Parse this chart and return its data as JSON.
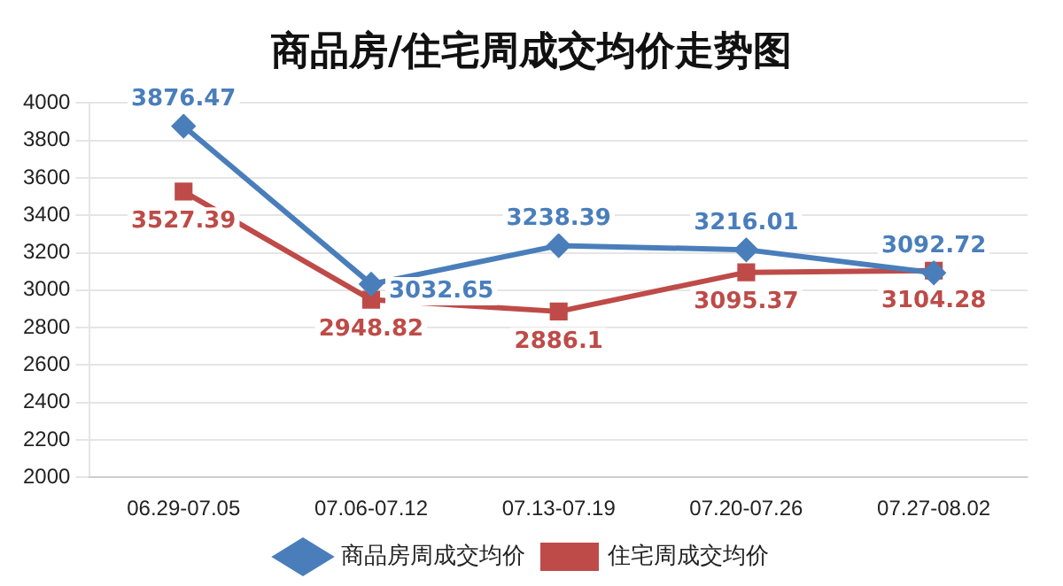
{
  "chart_data": {
    "type": "line",
    "title": "商品房/住宅周成交均价走势图",
    "categories": [
      "06.29-07.05",
      "07.06-07.12",
      "07.13-07.19",
      "07.20-07.26",
      "07.27-08.02"
    ],
    "series": [
      {
        "name": "商品房周成交均价",
        "color": "#4a7ebb",
        "marker": "diamond",
        "values": [
          3876.47,
          3032.65,
          3238.39,
          3216.01,
          3092.72
        ]
      },
      {
        "name": "住宅周成交均价",
        "color": "#be4b48",
        "marker": "square",
        "values": [
          3527.39,
          2948.82,
          2886.1,
          3095.37,
          3104.28
        ]
      }
    ],
    "ylim": [
      2000,
      4000
    ],
    "yticks": [
      2000,
      2200,
      2400,
      2600,
      2800,
      3000,
      3200,
      3400,
      3600,
      3800,
      4000
    ],
    "grid": "y",
    "legend": "bottom",
    "data_labels": true,
    "line_style": "solid"
  }
}
